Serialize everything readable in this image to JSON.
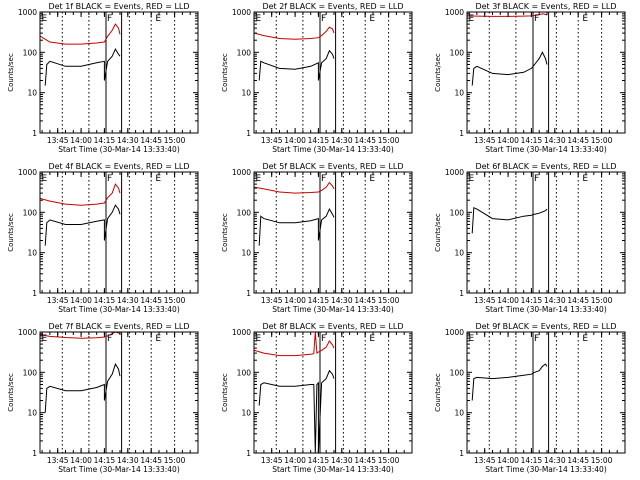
{
  "chart_data": [
    {
      "type": "line",
      "title": "Det 1f BLACK = Events, RED = LLD",
      "xlabel": "Start Time (30-Mar-14 13:33:40)",
      "ylabel": "Counts/sec",
      "ylim": [
        1,
        1000
      ],
      "yscale": "log",
      "xlim": [
        "13:33:40",
        "15:15:00"
      ],
      "xticks": [
        "13:45",
        "14:00",
        "14:15",
        "14:30",
        "14:45",
        "15:00"
      ],
      "yticks": [
        "1",
        "10",
        "100",
        "1000"
      ],
      "dotted_lines_at": [
        "13:48",
        "14:05",
        "14:31",
        "14:45",
        "15:00"
      ],
      "solid_lines_at": [
        "14:16",
        "14:26"
      ],
      "markers": [
        {
          "label": "E",
          "at": "13:34"
        },
        {
          "label": "F",
          "at": "14:16"
        },
        {
          "label": "E",
          "at": "14:47"
        }
      ],
      "series": [
        {
          "color": "#000000",
          "x": [
            "13:37",
            "13:38",
            "13:40",
            "13:50",
            "14:00",
            "14:10",
            "14:15",
            "14:15",
            "14:17",
            "14:20",
            "14:22",
            "14:24",
            "14:25"
          ],
          "y": [
            15,
            50,
            60,
            45,
            45,
            55,
            60,
            20,
            60,
            80,
            120,
            90,
            80
          ]
        },
        {
          "color": "#cc0000",
          "x": [
            "13:34",
            "13:40",
            "13:50",
            "14:00",
            "14:10",
            "14:15",
            "14:17",
            "14:20",
            "14:22",
            "14:24",
            "14:25"
          ],
          "y": [
            250,
            180,
            160,
            160,
            170,
            180,
            250,
            350,
            500,
            400,
            280
          ]
        }
      ]
    },
    {
      "type": "line",
      "title": "Det 2f BLACK = Events, RED = LLD",
      "xlabel": "Start Time (30-Mar-14 13:33:40)",
      "ylabel": "Counts/sec",
      "ylim": [
        1,
        1000
      ],
      "yscale": "log",
      "xlim": [
        "13:33:40",
        "15:15:00"
      ],
      "xticks": [
        "13:45",
        "14:00",
        "14:15",
        "14:30",
        "14:45",
        "15:00"
      ],
      "yticks": [
        "1",
        "10",
        "100",
        "1000"
      ],
      "dotted_lines_at": [
        "13:48",
        "14:05",
        "14:31",
        "14:45",
        "15:00"
      ],
      "solid_lines_at": [
        "14:16",
        "14:26"
      ],
      "markers": [
        {
          "label": "E",
          "at": "13:34"
        },
        {
          "label": "F",
          "at": "14:16"
        },
        {
          "label": "E",
          "at": "14:47"
        }
      ],
      "series": [
        {
          "color": "#000000",
          "x": [
            "13:37",
            "13:38",
            "13:40",
            "13:50",
            "14:00",
            "14:10",
            "14:15",
            "14:15",
            "14:17",
            "14:20",
            "14:22",
            "14:24",
            "14:25"
          ],
          "y": [
            20,
            60,
            55,
            40,
            38,
            45,
            55,
            20,
            55,
            70,
            110,
            90,
            70
          ]
        },
        {
          "color": "#cc0000",
          "x": [
            "13:34",
            "13:40",
            "13:50",
            "14:00",
            "14:10",
            "14:15",
            "14:17",
            "14:20",
            "14:22",
            "14:24",
            "14:25"
          ],
          "y": [
            300,
            260,
            220,
            210,
            220,
            230,
            260,
            330,
            420,
            380,
            300
          ]
        }
      ]
    },
    {
      "type": "line",
      "title": "Det 3f BLACK = Events, RED = LLD",
      "xlabel": "Start Time (30-Mar-14 13:33:40)",
      "ylabel": "Counts/sec",
      "ylim": [
        1,
        1000
      ],
      "yscale": "log",
      "xlim": [
        "13:33:40",
        "15:15:00"
      ],
      "xticks": [
        "13:45",
        "14:00",
        "14:15",
        "14:30",
        "14:45",
        "15:00"
      ],
      "yticks": [
        "1",
        "10",
        "100",
        "1000"
      ],
      "dotted_lines_at": [
        "13:48",
        "14:05",
        "14:31",
        "14:45",
        "15:00"
      ],
      "solid_lines_at": [
        "14:16",
        "14:26"
      ],
      "markers": [
        {
          "label": "E",
          "at": "13:34"
        },
        {
          "label": "F",
          "at": "14:16"
        },
        {
          "label": "E",
          "at": "14:47"
        }
      ],
      "series": [
        {
          "color": "#000000",
          "x": [
            "13:37",
            "13:38",
            "13:40",
            "13:50",
            "14:00",
            "14:10",
            "14:15",
            "14:17",
            "14:20",
            "14:22",
            "14:24",
            "14:25"
          ],
          "y": [
            15,
            40,
            45,
            30,
            28,
            32,
            40,
            50,
            70,
            100,
            70,
            50
          ]
        },
        {
          "color": "#cc0000",
          "x": [
            "13:34",
            "13:40",
            "13:50",
            "14:00",
            "14:10",
            "14:15",
            "14:17",
            "14:20",
            "14:22",
            "14:24",
            "14:25"
          ],
          "y": [
            800,
            790,
            780,
            780,
            790,
            800,
            820,
            850,
            900,
            870,
            840
          ]
        }
      ]
    },
    {
      "type": "line",
      "title": "Det 4f BLACK = Events, RED = LLD",
      "xlabel": "Start Time (30-Mar-14 13:33:40)",
      "ylabel": "Counts/sec",
      "ylim": [
        1,
        1000
      ],
      "yscale": "log",
      "xlim": [
        "13:33:40",
        "15:15:00"
      ],
      "xticks": [
        "13:45",
        "14:00",
        "14:15",
        "14:30",
        "14:45",
        "15:00"
      ],
      "yticks": [
        "1",
        "10",
        "100",
        "1000"
      ],
      "dotted_lines_at": [
        "13:48",
        "14:05",
        "14:31",
        "14:45",
        "15:00"
      ],
      "solid_lines_at": [
        "14:16",
        "14:26"
      ],
      "markers": [
        {
          "label": "E",
          "at": "13:34"
        },
        {
          "label": "F",
          "at": "14:16"
        },
        {
          "label": "E",
          "at": "14:47"
        }
      ],
      "series": [
        {
          "color": "#000000",
          "x": [
            "13:37",
            "13:38",
            "13:40",
            "13:50",
            "14:00",
            "14:10",
            "14:15",
            "14:15",
            "14:17",
            "14:20",
            "14:22",
            "14:24",
            "14:25"
          ],
          "y": [
            15,
            55,
            65,
            50,
            50,
            60,
            65,
            20,
            70,
            100,
            150,
            120,
            90
          ]
        },
        {
          "color": "#cc0000",
          "x": [
            "13:34",
            "13:40",
            "13:50",
            "14:00",
            "14:10",
            "14:15",
            "14:17",
            "14:20",
            "14:22",
            "14:24",
            "14:25"
          ],
          "y": [
            220,
            190,
            160,
            150,
            160,
            170,
            230,
            300,
            500,
            400,
            300
          ]
        }
      ]
    },
    {
      "type": "line",
      "title": "Det 5f BLACK = Events, RED = LLD",
      "xlabel": "Start Time (30-Mar-14 13:33:40)",
      "ylabel": "Counts/sec",
      "ylim": [
        1,
        1000
      ],
      "yscale": "log",
      "xlim": [
        "13:33:40",
        "15:15:00"
      ],
      "xticks": [
        "13:45",
        "14:00",
        "14:15",
        "14:30",
        "14:45",
        "15:00"
      ],
      "yticks": [
        "1",
        "10",
        "100",
        "1000"
      ],
      "dotted_lines_at": [
        "13:48",
        "14:05",
        "14:31",
        "14:45",
        "15:00"
      ],
      "solid_lines_at": [
        "14:16",
        "14:26"
      ],
      "markers": [
        {
          "label": "E",
          "at": "13:34"
        },
        {
          "label": "F",
          "at": "14:16"
        },
        {
          "label": "E",
          "at": "14:47"
        }
      ],
      "series": [
        {
          "color": "#000000",
          "x": [
            "13:37",
            "13:38",
            "13:40",
            "13:50",
            "14:00",
            "14:10",
            "14:15",
            "14:15",
            "14:17",
            "14:20",
            "14:22",
            "14:24",
            "14:25"
          ],
          "y": [
            15,
            80,
            70,
            55,
            55,
            62,
            70,
            20,
            65,
            80,
            120,
            90,
            75
          ]
        },
        {
          "color": "#cc0000",
          "x": [
            "13:34",
            "13:40",
            "13:50",
            "14:00",
            "14:10",
            "14:15",
            "14:17",
            "14:20",
            "14:22",
            "14:24",
            "14:25"
          ],
          "y": [
            420,
            380,
            320,
            300,
            310,
            320,
            350,
            420,
            550,
            450,
            380
          ]
        }
      ]
    },
    {
      "type": "line",
      "title": "Det 6f BLACK = Events, RED = LLD",
      "xlabel": "Start Time (30-Mar-14 13:33:40)",
      "ylabel": "Counts/sec",
      "ylim": [
        1,
        1000
      ],
      "yscale": "log",
      "xlim": [
        "13:33:40",
        "15:15:00"
      ],
      "xticks": [
        "13:45",
        "14:00",
        "14:15",
        "14:30",
        "14:45",
        "15:00"
      ],
      "yticks": [
        "1",
        "10",
        "100",
        "1000"
      ],
      "dotted_lines_at": [
        "13:48",
        "14:05",
        "14:31",
        "14:45",
        "15:00"
      ],
      "solid_lines_at": [
        "14:16",
        "14:26"
      ],
      "markers": [
        {
          "label": "E",
          "at": "13:34"
        },
        {
          "label": "F",
          "at": "14:16"
        },
        {
          "label": "E",
          "at": "14:47"
        }
      ],
      "series": [
        {
          "color": "#000000",
          "x": [
            "13:37",
            "13:38",
            "13:40",
            "13:50",
            "14:00",
            "14:10",
            "14:15",
            "14:17",
            "14:20",
            "14:24",
            "14:25"
          ],
          "y": [
            30,
            130,
            120,
            70,
            65,
            80,
            85,
            90,
            95,
            110,
            120
          ]
        }
      ]
    },
    {
      "type": "line",
      "title": "Det 7f BLACK = Events, RED = LLD",
      "xlabel": "Start Time (30-Mar-14 13:33:40)",
      "ylabel": "Counts/sec",
      "ylim": [
        1,
        1000
      ],
      "yscale": "log",
      "xlim": [
        "13:33:40",
        "15:15:00"
      ],
      "xticks": [
        "13:45",
        "14:00",
        "14:15",
        "14:30",
        "14:45",
        "15:00"
      ],
      "yticks": [
        "1",
        "10",
        "100",
        "1000"
      ],
      "dotted_lines_at": [
        "13:48",
        "14:05",
        "14:31",
        "14:45",
        "15:00"
      ],
      "solid_lines_at": [
        "14:16",
        "14:26"
      ],
      "markers": [
        {
          "label": "E",
          "at": "13:34"
        },
        {
          "label": "F",
          "at": "14:16"
        },
        {
          "label": "E",
          "at": "14:47"
        }
      ],
      "series": [
        {
          "color": "#000000",
          "x": [
            "13:37",
            "13:38",
            "13:40",
            "13:50",
            "14:00",
            "14:10",
            "14:15",
            "14:15",
            "14:17",
            "14:20",
            "14:22",
            "14:24",
            "14:25"
          ],
          "y": [
            10,
            40,
            45,
            35,
            35,
            42,
            50,
            20,
            60,
            90,
            160,
            120,
            80
          ]
        },
        {
          "color": "#cc0000",
          "x": [
            "13:34",
            "13:40",
            "13:50",
            "14:00",
            "14:10",
            "14:15",
            "14:17",
            "14:20",
            "14:22",
            "14:24",
            "14:25"
          ],
          "y": [
            850,
            780,
            730,
            700,
            720,
            750,
            800,
            900,
            1000,
            950,
            900
          ]
        }
      ]
    },
    {
      "type": "line",
      "title": "Det 8f BLACK = Events, RED = LLD",
      "xlabel": "Start Time (30-Mar-14 13:33:40)",
      "ylabel": "Counts/sec",
      "ylim": [
        1,
        1000
      ],
      "yscale": "log",
      "xlim": [
        "13:33:40",
        "15:15:00"
      ],
      "xticks": [
        "13:45",
        "14:00",
        "14:15",
        "14:30",
        "14:45",
        "15:00"
      ],
      "yticks": [
        "1",
        "10",
        "100",
        "1000"
      ],
      "dotted_lines_at": [
        "13:48",
        "14:05",
        "14:31",
        "14:45",
        "15:00"
      ],
      "solid_lines_at": [
        "14:16",
        "14:26"
      ],
      "markers": [
        {
          "label": "E",
          "at": "13:34"
        },
        {
          "label": "F",
          "at": "14:16"
        },
        {
          "label": "E",
          "at": "14:47"
        }
      ],
      "series": [
        {
          "color": "#000000",
          "x": [
            "13:37",
            "13:38",
            "13:40",
            "13:50",
            "14:00",
            "14:10",
            "14:12",
            "14:13",
            "14:14",
            "14:15",
            "14:15",
            "14:17",
            "14:20",
            "14:22",
            "14:24",
            "14:25"
          ],
          "y": [
            15,
            50,
            55,
            45,
            45,
            50,
            50,
            1,
            50,
            55,
            1,
            55,
            70,
            110,
            90,
            70
          ]
        },
        {
          "color": "#cc0000",
          "x": [
            "13:34",
            "13:40",
            "13:50",
            "14:00",
            "14:10",
            "14:12",
            "14:13",
            "14:14",
            "14:15",
            "14:17",
            "14:20",
            "14:22",
            "14:24",
            "14:25"
          ],
          "y": [
            350,
            300,
            260,
            260,
            280,
            290,
            1000,
            300,
            320,
            350,
            420,
            600,
            480,
            400
          ]
        }
      ]
    },
    {
      "type": "line",
      "title": "Det 9f BLACK = Events, RED = LLD",
      "xlabel": "Start Time (30-Mar-14 13:33:40)",
      "ylabel": "Counts/sec",
      "ylim": [
        1,
        1000
      ],
      "yscale": "log",
      "xlim": [
        "13:33:40",
        "15:15:00"
      ],
      "xticks": [
        "13:45",
        "14:00",
        "14:15",
        "14:30",
        "14:45",
        "15:00"
      ],
      "yticks": [
        "1",
        "10",
        "100",
        "1000"
      ],
      "dotted_lines_at": [
        "13:48",
        "14:05",
        "14:31",
        "14:45",
        "15:00"
      ],
      "solid_lines_at": [
        "14:16",
        "14:26"
      ],
      "markers": [
        {
          "label": "E",
          "at": "13:34"
        },
        {
          "label": "F",
          "at": "14:16"
        },
        {
          "label": "E",
          "at": "14:47"
        }
      ],
      "series": [
        {
          "color": "#000000",
          "x": [
            "13:37",
            "13:38",
            "13:40",
            "13:50",
            "14:00",
            "14:10",
            "14:15",
            "14:17",
            "14:20",
            "14:22",
            "14:24",
            "14:25"
          ],
          "y": [
            20,
            70,
            75,
            70,
            75,
            85,
            90,
            100,
            110,
            140,
            160,
            140
          ]
        }
      ]
    }
  ]
}
